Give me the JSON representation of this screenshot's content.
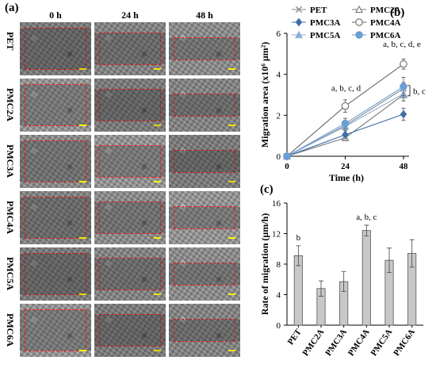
{
  "panel_a": {
    "label": "(a)",
    "columns": [
      "0 h",
      "24 h",
      "48 h"
    ],
    "rows": [
      "PET",
      "PMC2A",
      "PMC3A",
      "PMC4A",
      "PMC5A",
      "PMC6A"
    ]
  },
  "chart_data": [
    {
      "label": "(b)",
      "type": "line",
      "xlabel": "Time (h)",
      "ylabel": "Migration area (x10⁶ μm²)",
      "x": [
        0,
        24,
        48
      ],
      "xticks": [
        "0",
        "24",
        "48"
      ],
      "ylim": [
        0,
        6
      ],
      "yticks": [
        "0",
        "2",
        "4",
        "6"
      ],
      "legend_placement": "top-left",
      "series": [
        {
          "name": "PET",
          "values": [
            0,
            1.5,
            3.3
          ],
          "errors": [
            0,
            0.15,
            0.3
          ],
          "marker": "x",
          "color": "#8a8a8a"
        },
        {
          "name": "PMC2A",
          "values": [
            0,
            0.9,
            3.0
          ],
          "errors": [
            0,
            0.15,
            0.3
          ],
          "marker": "triangle-open",
          "color": "#7a7a7a"
        },
        {
          "name": "PMC3A",
          "values": [
            0,
            1.05,
            2.05
          ],
          "errors": [
            0,
            0.2,
            0.3
          ],
          "marker": "diamond",
          "color": "#3f6fa8"
        },
        {
          "name": "PMC4A",
          "values": [
            0,
            2.45,
            4.5
          ],
          "errors": [
            0,
            0.3,
            0.25
          ],
          "marker": "circle-open",
          "color": "#6a6a6a"
        },
        {
          "name": "PMC5A",
          "values": [
            0,
            1.45,
            3.05
          ],
          "errors": [
            0,
            0.2,
            0.35
          ],
          "marker": "triangle",
          "color": "#8fb0d6"
        },
        {
          "name": "PMC6A",
          "values": [
            0,
            1.6,
            3.4
          ],
          "errors": [
            0,
            0.25,
            0.45
          ],
          "marker": "circle",
          "color": "#6a9fd4"
        }
      ],
      "annotations": [
        "a, b, c, d",
        "a, b, c, d, e",
        "b, c"
      ]
    },
    {
      "label": "(c)",
      "type": "bar",
      "xlabel": "",
      "ylabel": "Rate of migration (μm/h)",
      "categories": [
        "PET",
        "PMC2A",
        "PMC3A",
        "PMC4A",
        "PMC5A",
        "PMC6A"
      ],
      "values": [
        9.1,
        4.8,
        5.7,
        12.4,
        8.5,
        9.4
      ],
      "errors": [
        1.3,
        1.0,
        1.3,
        0.7,
        1.6,
        1.8
      ],
      "ylim": [
        0,
        16
      ],
      "yticks": [
        "0",
        "4",
        "8",
        "12",
        "16"
      ],
      "bar_color": "#c8c8c8",
      "annotations": [
        {
          "category": "PET",
          "text": "b"
        },
        {
          "category": "PMC4A",
          "text": "a, b, c"
        }
      ]
    }
  ]
}
